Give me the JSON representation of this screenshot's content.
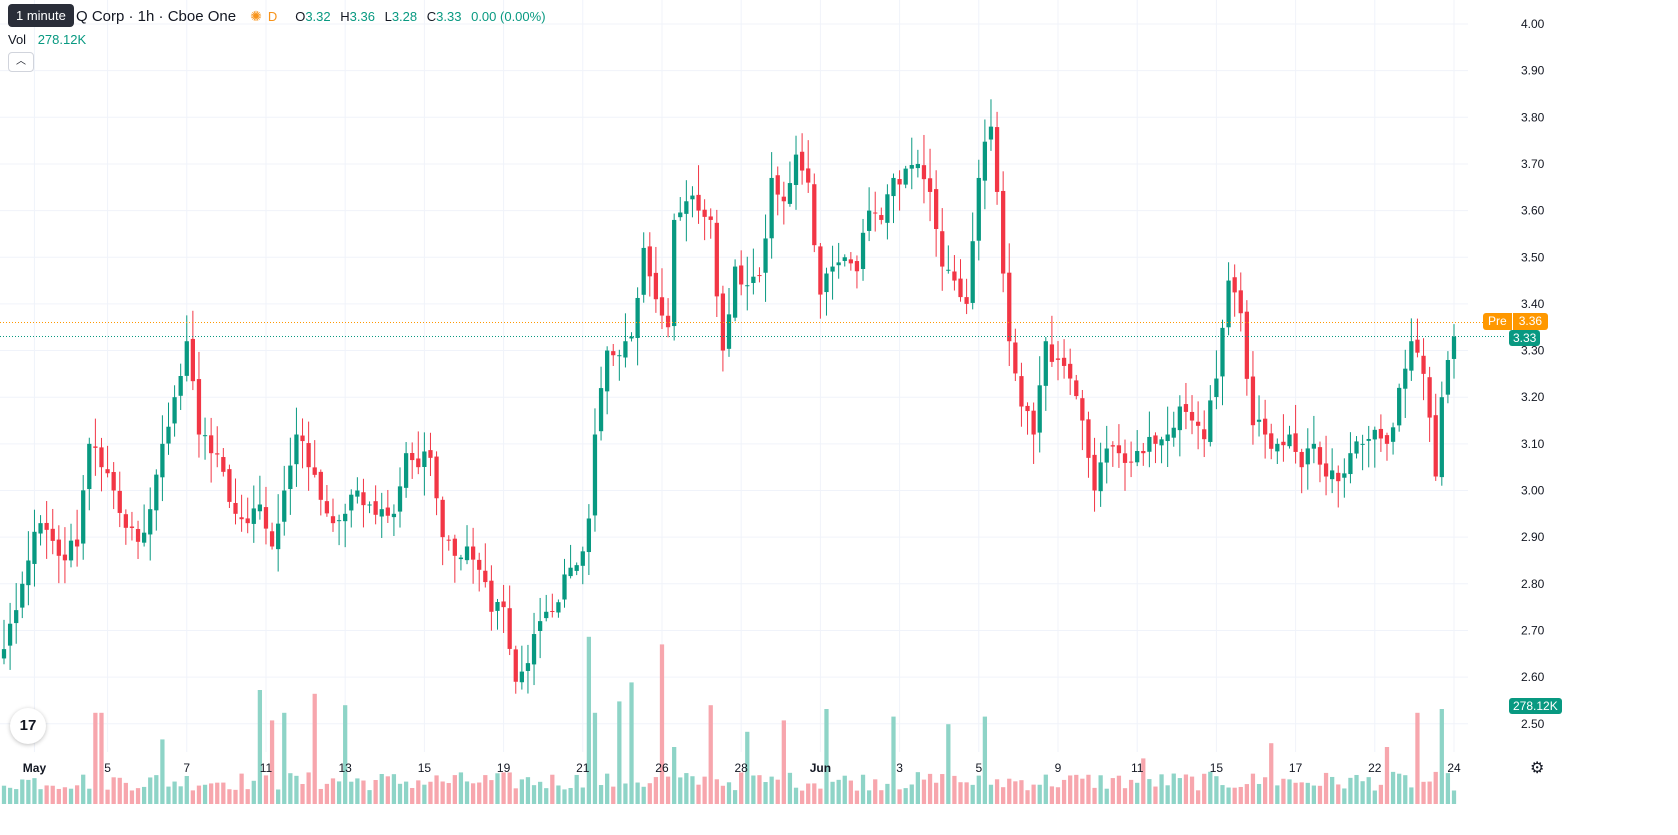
{
  "legend": {
    "symbol_title": "Q Corp · 1h · Cboe One",
    "sun_icon": "sun-icon",
    "session_flag": "D",
    "ohlc": [
      {
        "k": "O",
        "v": "3.32"
      },
      {
        "k": "H",
        "v": "3.36"
      },
      {
        "k": "L",
        "v": "3.28"
      },
      {
        "k": "C",
        "v": "3.33"
      },
      {
        "k": "",
        "v": "0.00 (0.00%)"
      }
    ],
    "tooltip": "1 minute",
    "volume_label": "Vol",
    "volume_value": "278.12K",
    "collapse_icon": "chevron-up-icon"
  },
  "badges": {
    "pre_label": "Pre",
    "pre_value": "3.36",
    "last_value": "3.33",
    "volume_value": "278.12K"
  },
  "colors": {
    "up": "#089981",
    "down": "#f23645",
    "vol_up": "#8ed4c7",
    "vol_down": "#f7a6ad",
    "grid": "#f0f3fa",
    "pre_line": "#ff9800",
    "last_line": "#089981"
  },
  "chart_data": {
    "type": "candlestick",
    "y_axis": {
      "ylim": [
        2.47,
        4.03
      ],
      "ticks": [
        "4.00",
        "3.90",
        "3.80",
        "3.70",
        "3.60",
        "3.50",
        "3.40",
        "3.30",
        "3.20",
        "3.10",
        "3.00",
        "2.90",
        "2.80",
        "2.70",
        "2.60",
        "2.50"
      ]
    },
    "x_ticks": [
      {
        "label": "May",
        "bold": true,
        "i": 5
      },
      {
        "label": "5",
        "i": 17
      },
      {
        "label": "7",
        "i": 30
      },
      {
        "label": "11",
        "i": 43
      },
      {
        "label": "13",
        "i": 56
      },
      {
        "label": "15",
        "i": 69
      },
      {
        "label": "19",
        "i": 82
      },
      {
        "label": "21",
        "i": 95
      },
      {
        "label": "26",
        "i": 108
      },
      {
        "label": "28",
        "i": 121
      },
      {
        "label": "Jun",
        "bold": true,
        "i": 134
      },
      {
        "label": "3",
        "i": 147
      },
      {
        "label": "5",
        "i": 160
      },
      {
        "label": "9",
        "i": 173
      },
      {
        "label": "11",
        "i": 186
      },
      {
        "label": "15",
        "i": 199
      },
      {
        "label": "17",
        "i": 212
      },
      {
        "label": "22",
        "i": 225
      },
      {
        "label": "24",
        "i": 238
      }
    ],
    "pre_market": 3.36,
    "last_close": 3.33,
    "anchors": [
      [
        0,
        2.66
      ],
      [
        3,
        2.8
      ],
      [
        6,
        2.93
      ],
      [
        9,
        2.86
      ],
      [
        12,
        2.88
      ],
      [
        14,
        3.1
      ],
      [
        16,
        3.05
      ],
      [
        18,
        3.0
      ],
      [
        20,
        2.92
      ],
      [
        22,
        2.89
      ],
      [
        24,
        2.96
      ],
      [
        26,
        3.1
      ],
      [
        28,
        3.2
      ],
      [
        30,
        3.32
      ],
      [
        32,
        3.12
      ],
      [
        34,
        3.08
      ],
      [
        36,
        3.04
      ],
      [
        38,
        2.95
      ],
      [
        40,
        2.93
      ],
      [
        42,
        2.97
      ],
      [
        44,
        2.88
      ],
      [
        46,
        3.0
      ],
      [
        48,
        3.12
      ],
      [
        50,
        3.05
      ],
      [
        52,
        2.98
      ],
      [
        54,
        2.93
      ],
      [
        56,
        2.95
      ],
      [
        58,
        3.0
      ],
      [
        60,
        2.97
      ],
      [
        62,
        2.96
      ],
      [
        64,
        2.95
      ],
      [
        66,
        3.08
      ],
      [
        68,
        3.05
      ],
      [
        70,
        3.07
      ],
      [
        72,
        2.9
      ],
      [
        74,
        2.86
      ],
      [
        76,
        2.88
      ],
      [
        78,
        2.83
      ],
      [
        80,
        2.74
      ],
      [
        82,
        2.75
      ],
      [
        84,
        2.59
      ],
      [
        86,
        2.63
      ],
      [
        88,
        2.72
      ],
      [
        90,
        2.74
      ],
      [
        92,
        2.82
      ],
      [
        94,
        2.84
      ],
      [
        96,
        2.94
      ],
      [
        97,
        3.12
      ],
      [
        99,
        3.3
      ],
      [
        101,
        3.29
      ],
      [
        103,
        3.33
      ],
      [
        105,
        3.52
      ],
      [
        107,
        3.41
      ],
      [
        109,
        3.35
      ],
      [
        110,
        3.58
      ],
      [
        112,
        3.62
      ],
      [
        114,
        3.6
      ],
      [
        116,
        3.58
      ],
      [
        118,
        3.3
      ],
      [
        120,
        3.48
      ],
      [
        122,
        3.44
      ],
      [
        124,
        3.46
      ],
      [
        126,
        3.67
      ],
      [
        128,
        3.62
      ],
      [
        130,
        3.72
      ],
      [
        132,
        3.66
      ],
      [
        134,
        3.42
      ],
      [
        136,
        3.48
      ],
      [
        138,
        3.5
      ],
      [
        140,
        3.47
      ],
      [
        142,
        3.6
      ],
      [
        144,
        3.58
      ],
      [
        146,
        3.67
      ],
      [
        148,
        3.69
      ],
      [
        150,
        3.7
      ],
      [
        152,
        3.64
      ],
      [
        154,
        3.48
      ],
      [
        156,
        3.45
      ],
      [
        158,
        3.4
      ],
      [
        160,
        3.67
      ],
      [
        162,
        3.78
      ],
      [
        163,
        3.64
      ],
      [
        165,
        3.32
      ],
      [
        167,
        3.18
      ],
      [
        169,
        3.12
      ],
      [
        171,
        3.32
      ],
      [
        173,
        3.28
      ],
      [
        175,
        3.24
      ],
      [
        177,
        3.15
      ],
      [
        179,
        3.0
      ],
      [
        181,
        3.09
      ],
      [
        183,
        3.08
      ],
      [
        185,
        3.06
      ],
      [
        187,
        3.08
      ],
      [
        189,
        3.1
      ],
      [
        191,
        3.12
      ],
      [
        193,
        3.18
      ],
      [
        195,
        3.15
      ],
      [
        197,
        3.11
      ],
      [
        199,
        3.24
      ],
      [
        201,
        3.45
      ],
      [
        203,
        3.38
      ],
      [
        205,
        3.14
      ],
      [
        207,
        3.12
      ],
      [
        209,
        3.1
      ],
      [
        211,
        3.12
      ],
      [
        213,
        3.05
      ],
      [
        215,
        3.1
      ],
      [
        217,
        3.03
      ],
      [
        219,
        3.02
      ],
      [
        221,
        3.08
      ],
      [
        223,
        3.1
      ],
      [
        225,
        3.13
      ],
      [
        227,
        3.1
      ],
      [
        229,
        3.22
      ],
      [
        231,
        3.32
      ],
      [
        233,
        3.25
      ],
      [
        235,
        3.03
      ],
      [
        236,
        3.2
      ],
      [
        238,
        3.33
      ]
    ],
    "volume_spikes": [
      [
        15,
        2.4
      ],
      [
        16,
        2.4
      ],
      [
        26,
        1.7
      ],
      [
        42,
        3.0
      ],
      [
        44,
        2.2
      ],
      [
        46,
        2.4
      ],
      [
        51,
        2.9
      ],
      [
        56,
        2.6
      ],
      [
        96,
        4.4
      ],
      [
        97,
        2.4
      ],
      [
        101,
        2.7
      ],
      [
        103,
        3.2
      ],
      [
        108,
        4.2
      ],
      [
        110,
        1.5
      ],
      [
        116,
        2.6
      ],
      [
        122,
        1.9
      ],
      [
        128,
        2.2
      ],
      [
        135,
        2.5
      ],
      [
        146,
        2.3
      ],
      [
        155,
        2.1
      ],
      [
        161,
        2.3
      ],
      [
        187,
        1.2
      ],
      [
        208,
        1.6
      ],
      [
        227,
        1.5
      ],
      [
        232,
        2.4
      ],
      [
        236,
        2.5
      ]
    ]
  }
}
